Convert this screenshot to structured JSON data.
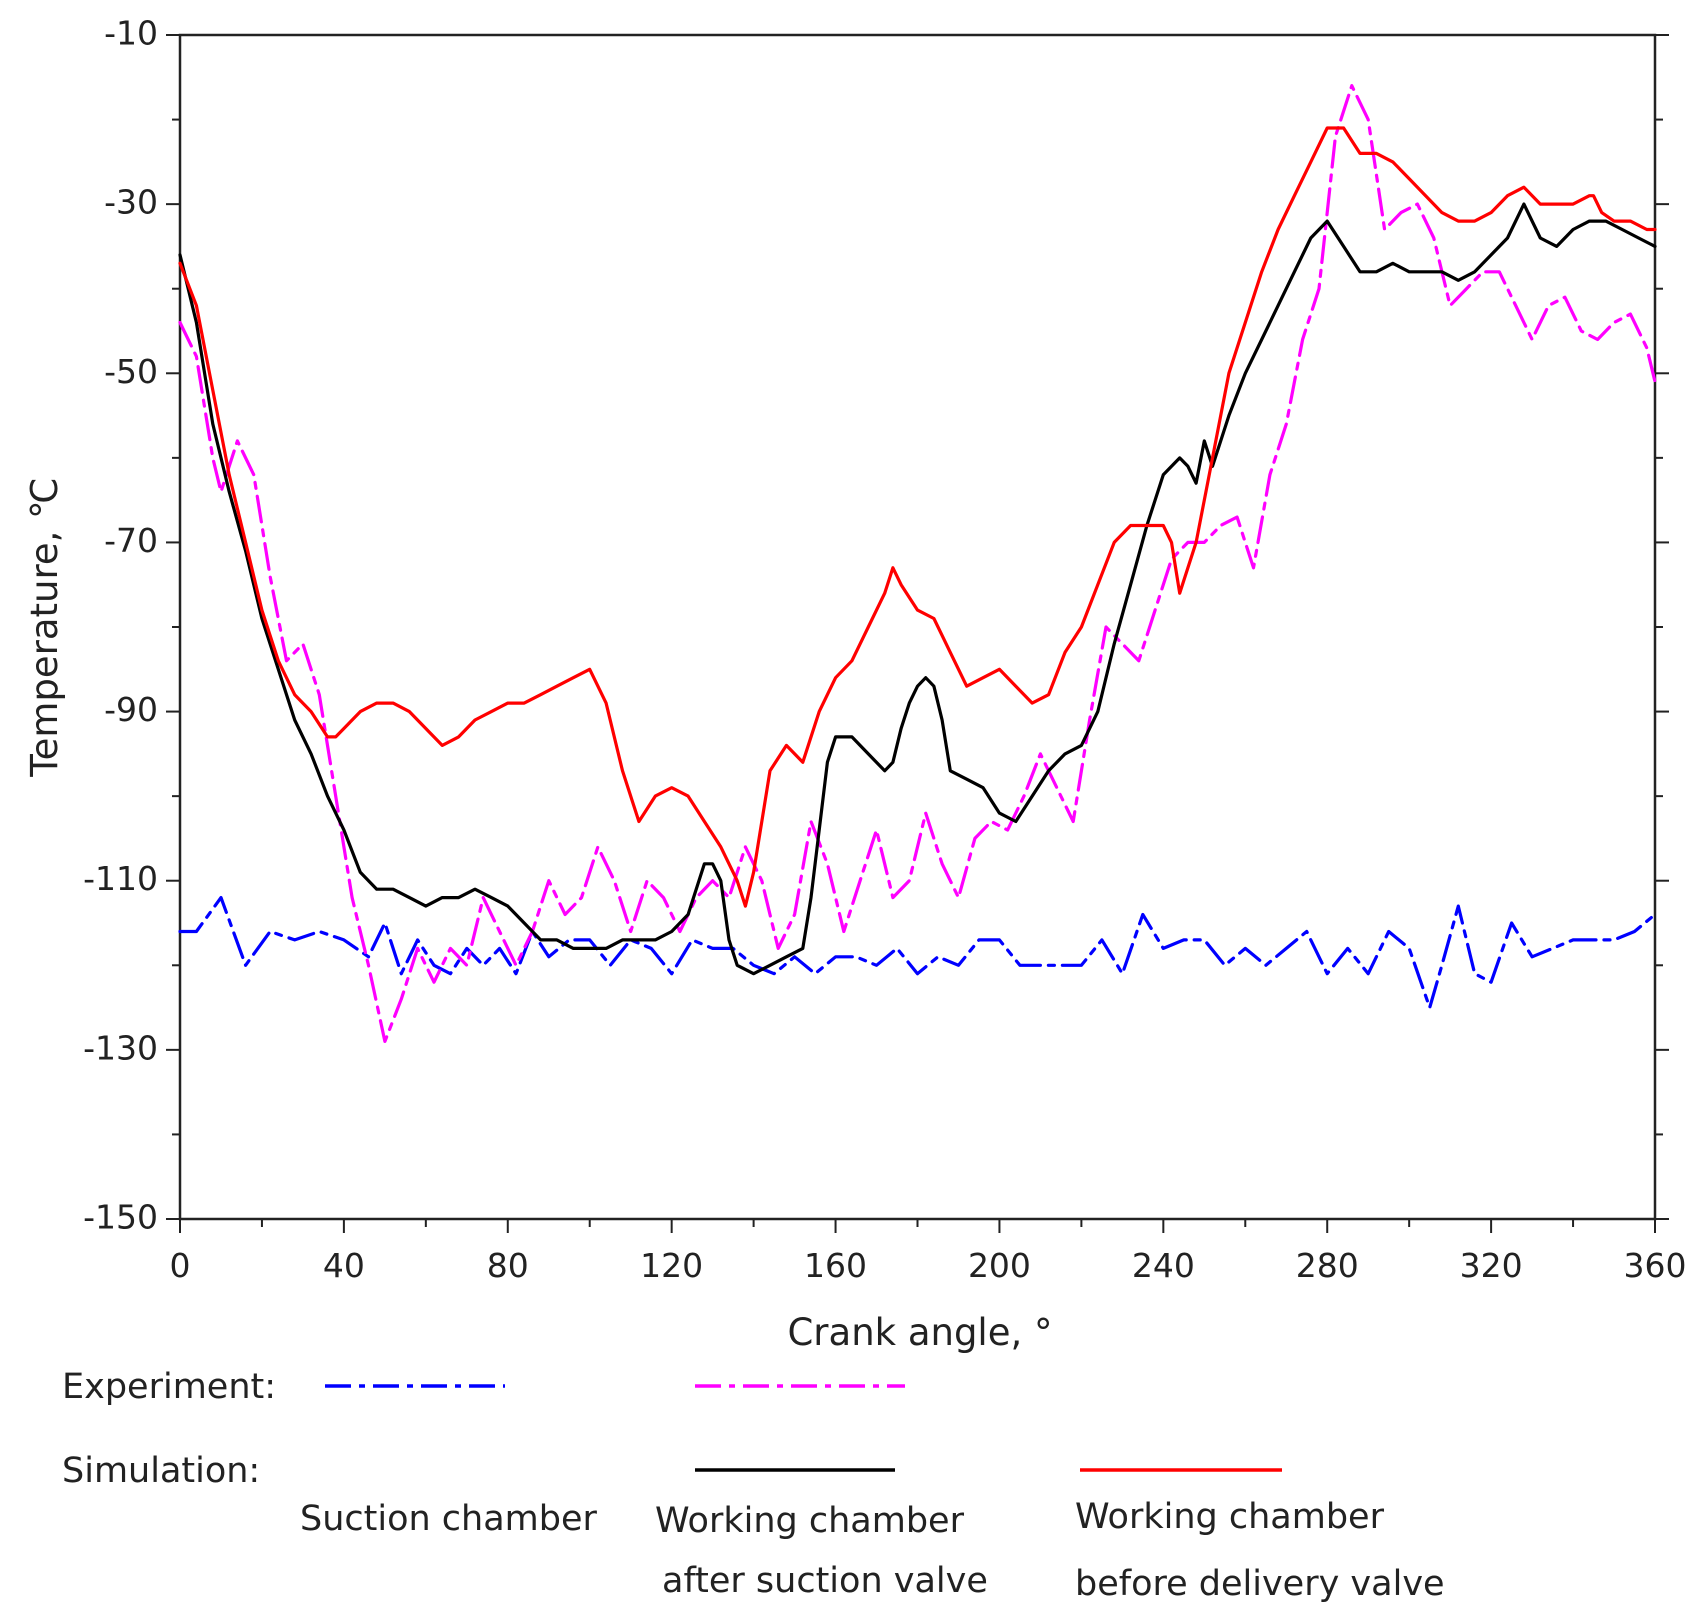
{
  "chart_data": {
    "type": "line",
    "title": "",
    "xlabel": "Crank angle,  °",
    "ylabel": "Temperature,  ℃",
    "xlim": [
      0,
      360
    ],
    "ylim": [
      -150,
      -10
    ],
    "xticks": [
      0,
      40,
      80,
      120,
      160,
      200,
      240,
      280,
      320,
      360
    ],
    "yticks": [
      -10,
      -30,
      -50,
      -70,
      -90,
      -110,
      -130,
      -150
    ],
    "grid": false,
    "legend": {
      "experiment_label": "Experiment:",
      "simulation_label": "Simulation:",
      "column_labels": [
        [
          "Suction chamber"
        ],
        [
          "Working chamber",
          "after suction valve"
        ],
        [
          "Working chamber",
          "before delivery valve"
        ]
      ]
    },
    "series": [
      {
        "name": "Experiment - Suction chamber",
        "style": "dashdot",
        "color": "#0000ff",
        "x": [
          0,
          4,
          10,
          16,
          22,
          28,
          34,
          40,
          46,
          50,
          54,
          58,
          62,
          66,
          70,
          74,
          78,
          82,
          86,
          90,
          95,
          100,
          105,
          110,
          115,
          120,
          125,
          130,
          135,
          140,
          145,
          150,
          155,
          160,
          165,
          170,
          175,
          180,
          185,
          190,
          195,
          200,
          205,
          210,
          215,
          220,
          225,
          230,
          235,
          240,
          245,
          250,
          255,
          260,
          265,
          270,
          275,
          280,
          285,
          290,
          295,
          300,
          305,
          308,
          312,
          316,
          320,
          325,
          330,
          335,
          340,
          345,
          350,
          355,
          360
        ],
        "y": [
          -116,
          -116,
          -112,
          -120,
          -116,
          -117,
          -116,
          -117,
          -119,
          -115,
          -121,
          -117,
          -120,
          -121,
          -118,
          -120,
          -118,
          -121,
          -116,
          -119,
          -117,
          -117,
          -120,
          -117,
          -118,
          -121,
          -117,
          -118,
          -118,
          -120,
          -121,
          -119,
          -121,
          -119,
          -119,
          -120,
          -118,
          -121,
          -119,
          -120,
          -117,
          -117,
          -120,
          -120,
          -120,
          -120,
          -117,
          -121,
          -114,
          -118,
          -117,
          -117,
          -120,
          -118,
          -120,
          -118,
          -116,
          -121,
          -118,
          -121,
          -116,
          -118,
          -125,
          -120,
          -113,
          -121,
          -122,
          -115,
          -119,
          -118,
          -117,
          -117,
          -117,
          -116,
          -114
        ]
      },
      {
        "name": "Experiment - Working chamber after suction valve",
        "style": "dashdot",
        "color": "#ff00ff",
        "x": [
          0,
          4,
          8,
          10,
          14,
          18,
          22,
          26,
          30,
          34,
          38,
          42,
          46,
          50,
          54,
          58,
          62,
          66,
          70,
          74,
          78,
          82,
          86,
          90,
          94,
          98,
          102,
          106,
          110,
          114,
          118,
          122,
          126,
          130,
          134,
          138,
          142,
          146,
          150,
          154,
          158,
          162,
          166,
          170,
          174,
          178,
          182,
          186,
          190,
          194,
          198,
          202,
          206,
          210,
          214,
          218,
          222,
          226,
          230,
          234,
          238,
          242,
          246,
          250,
          254,
          258,
          262,
          266,
          270,
          274,
          278,
          282,
          286,
          290,
          294,
          298,
          302,
          306,
          310,
          314,
          318,
          322,
          326,
          330,
          334,
          338,
          342,
          346,
          350,
          354,
          358,
          360
        ],
        "y": [
          -44,
          -48,
          -60,
          -64,
          -58,
          -62,
          -74,
          -84,
          -82,
          -88,
          -100,
          -112,
          -120,
          -129,
          -124,
          -118,
          -122,
          -118,
          -120,
          -112,
          -116,
          -120,
          -116,
          -110,
          -114,
          -112,
          -106,
          -110,
          -116,
          -110,
          -112,
          -116,
          -112,
          -110,
          -112,
          -106,
          -110,
          -118,
          -114,
          -103,
          -108,
          -116,
          -110,
          -104,
          -112,
          -110,
          -102,
          -108,
          -112,
          -105,
          -103,
          -104,
          -100,
          -95,
          -99,
          -103,
          -91,
          -80,
          -82,
          -84,
          -78,
          -72,
          -70,
          -70,
          -68,
          -67,
          -73,
          -62,
          -56,
          -46,
          -40,
          -22,
          -16,
          -20,
          -33,
          -31,
          -30,
          -34,
          -42,
          -40,
          -38,
          -38,
          -42,
          -46,
          -42,
          -41,
          -45,
          -46,
          -44,
          -43,
          -47,
          -51
        ]
      },
      {
        "name": "Simulation - Working chamber after suction valve",
        "style": "solid",
        "color": "#000000",
        "x": [
          0,
          4,
          8,
          12,
          16,
          20,
          24,
          28,
          32,
          36,
          40,
          44,
          48,
          52,
          56,
          60,
          64,
          68,
          72,
          76,
          80,
          84,
          88,
          92,
          96,
          100,
          104,
          108,
          112,
          116,
          120,
          124,
          128,
          130,
          132,
          134,
          136,
          140,
          144,
          148,
          152,
          154,
          156,
          158,
          160,
          164,
          168,
          172,
          174,
          176,
          178,
          180,
          182,
          184,
          186,
          188,
          192,
          196,
          200,
          204,
          208,
          212,
          216,
          220,
          224,
          228,
          232,
          236,
          240,
          244,
          246,
          248,
          250,
          252,
          256,
          260,
          264,
          268,
          272,
          276,
          280,
          284,
          288,
          292,
          296,
          300,
          304,
          308,
          312,
          316,
          320,
          324,
          328,
          332,
          336,
          340,
          344,
          348,
          352,
          356,
          360
        ],
        "y": [
          -36,
          -44,
          -56,
          -64,
          -71,
          -79,
          -85,
          -91,
          -95,
          -100,
          -104,
          -109,
          -111,
          -111,
          -112,
          -113,
          -112,
          -112,
          -111,
          -112,
          -113,
          -115,
          -117,
          -117,
          -118,
          -118,
          -118,
          -117,
          -117,
          -117,
          -116,
          -114,
          -108,
          -108,
          -110,
          -117,
          -120,
          -121,
          -120,
          -119,
          -118,
          -112,
          -104,
          -96,
          -93,
          -93,
          -95,
          -97,
          -96,
          -92,
          -89,
          -87,
          -86,
          -87,
          -91,
          -97,
          -98,
          -99,
          -102,
          -103,
          -100,
          -97,
          -95,
          -94,
          -90,
          -82,
          -75,
          -68,
          -62,
          -60,
          -61,
          -63,
          -58,
          -61,
          -55,
          -50,
          -46,
          -42,
          -38,
          -34,
          -32,
          -35,
          -38,
          -38,
          -37,
          -38,
          -38,
          -38,
          -39,
          -38,
          -36,
          -34,
          -30,
          -34,
          -35,
          -33,
          -32,
          -32,
          -33,
          -34,
          -35
        ]
      },
      {
        "name": "Simulation - Working chamber before delivery valve",
        "style": "solid",
        "color": "#ff0000",
        "x": [
          0,
          4,
          8,
          12,
          16,
          20,
          24,
          28,
          32,
          36,
          38,
          40,
          44,
          48,
          52,
          56,
          60,
          64,
          68,
          72,
          76,
          80,
          84,
          88,
          92,
          96,
          100,
          104,
          108,
          112,
          116,
          120,
          124,
          128,
          132,
          136,
          138,
          140,
          144,
          148,
          152,
          156,
          160,
          164,
          168,
          172,
          174,
          176,
          180,
          184,
          188,
          192,
          196,
          200,
          204,
          208,
          212,
          216,
          220,
          224,
          228,
          232,
          236,
          240,
          242,
          244,
          248,
          252,
          256,
          260,
          264,
          268,
          272,
          276,
          280,
          284,
          288,
          292,
          296,
          300,
          304,
          308,
          312,
          316,
          320,
          324,
          328,
          332,
          336,
          340,
          344,
          345,
          347,
          350,
          354,
          358,
          360
        ],
        "y": [
          -37,
          -42,
          -52,
          -62,
          -70,
          -78,
          -84,
          -88,
          -90,
          -93,
          -93,
          -92,
          -90,
          -89,
          -89,
          -90,
          -92,
          -94,
          -93,
          -91,
          -90,
          -89,
          -89,
          -88,
          -87,
          -86,
          -85,
          -89,
          -97,
          -103,
          -100,
          -99,
          -100,
          -103,
          -106,
          -110,
          -113,
          -109,
          -97,
          -94,
          -96,
          -90,
          -86,
          -84,
          -80,
          -76,
          -73,
          -75,
          -78,
          -79,
          -83,
          -87,
          -86,
          -85,
          -87,
          -89,
          -88,
          -83,
          -80,
          -75,
          -70,
          -68,
          -68,
          -68,
          -70,
          -76,
          -70,
          -60,
          -50,
          -44,
          -38,
          -33,
          -29,
          -25,
          -21,
          -21,
          -24,
          -24,
          -25,
          -27,
          -29,
          -31,
          -32,
          -32,
          -31,
          -29,
          -28,
          -30,
          -30,
          -30,
          -29,
          -29,
          -31,
          -32,
          -32,
          -33,
          -33
        ]
      }
    ]
  }
}
